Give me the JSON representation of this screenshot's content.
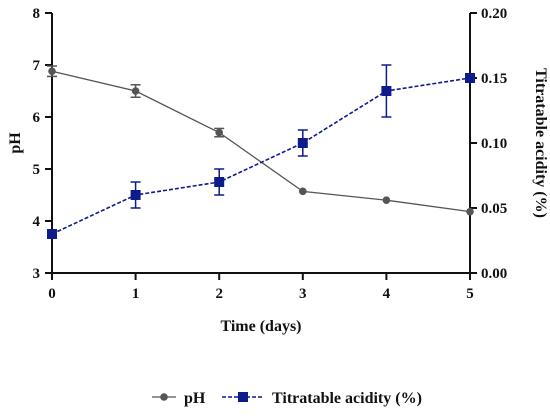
{
  "chart_data": {
    "type": "line",
    "x": [
      0,
      1,
      2,
      3,
      4,
      5
    ],
    "xlabel": "Time (days)",
    "xlim": [
      0,
      5
    ],
    "xticks": [
      "0",
      "1",
      "2",
      "3",
      "4",
      "5"
    ],
    "ylabel_left": "pH",
    "ylim_left": [
      3,
      8
    ],
    "yticks_left": [
      "3",
      "4",
      "5",
      "6",
      "7",
      "8"
    ],
    "ylabel_right": "Titratable acidity (%)",
    "ylim_right": [
      0,
      0.2
    ],
    "yticks_right": [
      "0.00",
      "0.05",
      "0.10",
      "0.15",
      "0.20"
    ],
    "grid": false,
    "legend_position": "bottom",
    "series": [
      {
        "name": "pH",
        "axis": "left",
        "values": [
          6.88,
          6.5,
          5.7,
          4.57,
          4.4,
          4.18
        ],
        "errors": [
          0.1,
          0.12,
          0.08,
          0.0,
          0.0,
          0.0
        ],
        "color": "#555555",
        "marker": "circle",
        "line_style": "solid"
      },
      {
        "name": "Titratable acidity (%)",
        "axis": "right",
        "values": [
          0.03,
          0.06,
          0.07,
          0.1,
          0.14,
          0.15
        ],
        "errors": [
          0.0,
          0.01,
          0.01,
          0.01,
          0.02,
          0.0
        ],
        "color": "#0d1b8c",
        "marker": "square",
        "line_style": "dashed"
      }
    ]
  }
}
